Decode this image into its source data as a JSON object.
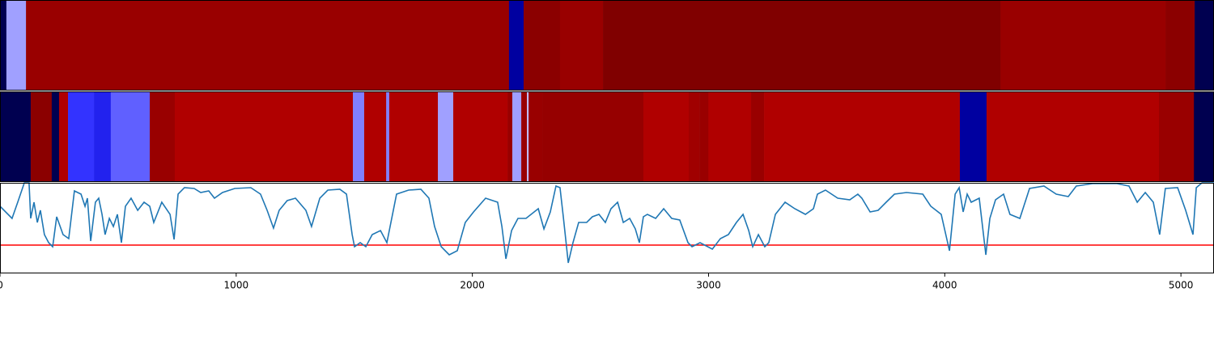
{
  "chart_data": {
    "type": "line",
    "color": "#1f77b4",
    "xlim": [
      0,
      5140
    ],
    "ylim": [
      0,
      112
    ],
    "xticks": [
      0,
      1000,
      2000,
      3000,
      4000,
      5000
    ],
    "threshold": {
      "value": 35,
      "color": "#ff0000"
    },
    "strips": [
      {
        "edges": [
          0,
          27,
          110,
          2155,
          2217,
          2371,
          2553,
          4236,
          4935,
          5058,
          5140
        ],
        "colors": [
          "#000050",
          "#a0a0ff",
          "#990000",
          "#0000a0",
          "#8b0000",
          "#990000",
          "#800000",
          "#990000",
          "#8b0000",
          "#000050"
        ]
      },
      {
        "edges": [
          0,
          130,
          219,
          250,
          288,
          398,
          469,
          634,
          740,
          1494,
          1542,
          1635,
          1648,
          1854,
          1919,
          2149,
          2169,
          2207,
          2231,
          2238,
          2296,
          2724,
          2916,
          2961,
          2999,
          3180,
          3235,
          4064,
          4177,
          4907,
          5055,
          5140
        ],
        "colors": [
          "#000050",
          "#8b0000",
          "#000050",
          "#b00000",
          "#3333ff",
          "#2222ee",
          "#6060ff",
          "#990000",
          "#b00000",
          "#8080ff",
          "#b00000",
          "#8080ff",
          "#b00000",
          "#a0a0ff",
          "#b00000",
          "#990000",
          "#a0a0ff",
          "#990000",
          "#c0c0ff",
          "#990000",
          "#960000",
          "#b00000",
          "#a00000",
          "#990000",
          "#b00000",
          "#990000",
          "#b00000",
          "#0000a0",
          "#b00000",
          "#990000",
          "#000050"
        ]
      }
    ],
    "x": [
      0,
      51,
      75,
      103,
      123,
      130,
      144,
      158,
      171,
      188,
      206,
      223,
      240,
      267,
      291,
      315,
      343,
      360,
      370,
      384,
      404,
      418,
      432,
      445,
      463,
      480,
      497,
      514,
      531,
      555,
      583,
      610,
      634,
      651,
      685,
      720,
      737,
      754,
      781,
      822,
      850,
      884,
      908,
      942,
      994,
      1062,
      1103,
      1131,
      1158,
      1182,
      1216,
      1251,
      1295,
      1319,
      1354,
      1388,
      1439,
      1467,
      1491,
      1501,
      1525,
      1549,
      1576,
      1611,
      1638,
      1679,
      1730,
      1782,
      1816,
      1840,
      1868,
      1902,
      1936,
      1970,
      2005,
      2056,
      2107,
      2125,
      2142,
      2166,
      2193,
      2227,
      2279,
      2303,
      2330,
      2354,
      2371,
      2385,
      2406,
      2426,
      2450,
      2484,
      2508,
      2536,
      2563,
      2587,
      2615,
      2639,
      2666,
      2690,
      2707,
      2724,
      2741,
      2776,
      2810,
      2844,
      2878,
      2913,
      2930,
      2964,
      3016,
      3050,
      3084,
      3118,
      3146,
      3170,
      3187,
      3211,
      3238,
      3255,
      3283,
      3324,
      3365,
      3410,
      3444,
      3461,
      3495,
      3547,
      3598,
      3632,
      3649,
      3684,
      3718,
      3752,
      3787,
      3838,
      3907,
      3941,
      3985,
      4020,
      4044,
      4061,
      4078,
      4095,
      4112,
      4146,
      4174,
      4191,
      4215,
      4249,
      4276,
      4318,
      4359,
      4420,
      4472,
      4523,
      4557,
      4626,
      4729,
      4780,
      4815,
      4849,
      4883,
      4910,
      4934,
      4986,
      5020,
      5051,
      5065,
      5089,
      5140
    ],
    "values": [
      83,
      68,
      88,
      112,
      112,
      68,
      88,
      63,
      78,
      48,
      38,
      33,
      70,
      48,
      43,
      102,
      98,
      83,
      93,
      40,
      88,
      93,
      73,
      48,
      68,
      58,
      73,
      38,
      83,
      93,
      78,
      88,
      83,
      63,
      88,
      73,
      42,
      98,
      106,
      105,
      100,
      102,
      93,
      100,
      105,
      106,
      98,
      78,
      56,
      78,
      90,
      93,
      78,
      58,
      93,
      103,
      104,
      98,
      48,
      33,
      38,
      33,
      48,
      53,
      38,
      98,
      103,
      104,
      93,
      58,
      33,
      23,
      28,
      63,
      76,
      93,
      88,
      58,
      18,
      53,
      68,
      68,
      80,
      55,
      76,
      108,
      106,
      70,
      13,
      38,
      63,
      63,
      70,
      73,
      63,
      80,
      88,
      63,
      68,
      55,
      38,
      70,
      73,
      68,
      80,
      68,
      66,
      38,
      33,
      38,
      30,
      43,
      48,
      63,
      73,
      53,
      33,
      48,
      33,
      38,
      73,
      88,
      80,
      73,
      80,
      98,
      103,
      93,
      91,
      98,
      93,
      76,
      78,
      88,
      98,
      100,
      98,
      83,
      73,
      28,
      98,
      106,
      76,
      98,
      88,
      93,
      23,
      68,
      91,
      98,
      73,
      68,
      105,
      108,
      98,
      95,
      108,
      111,
      111,
      108,
      88,
      100,
      88,
      48,
      105,
      106,
      78,
      48,
      106,
      112,
      112
    ]
  }
}
